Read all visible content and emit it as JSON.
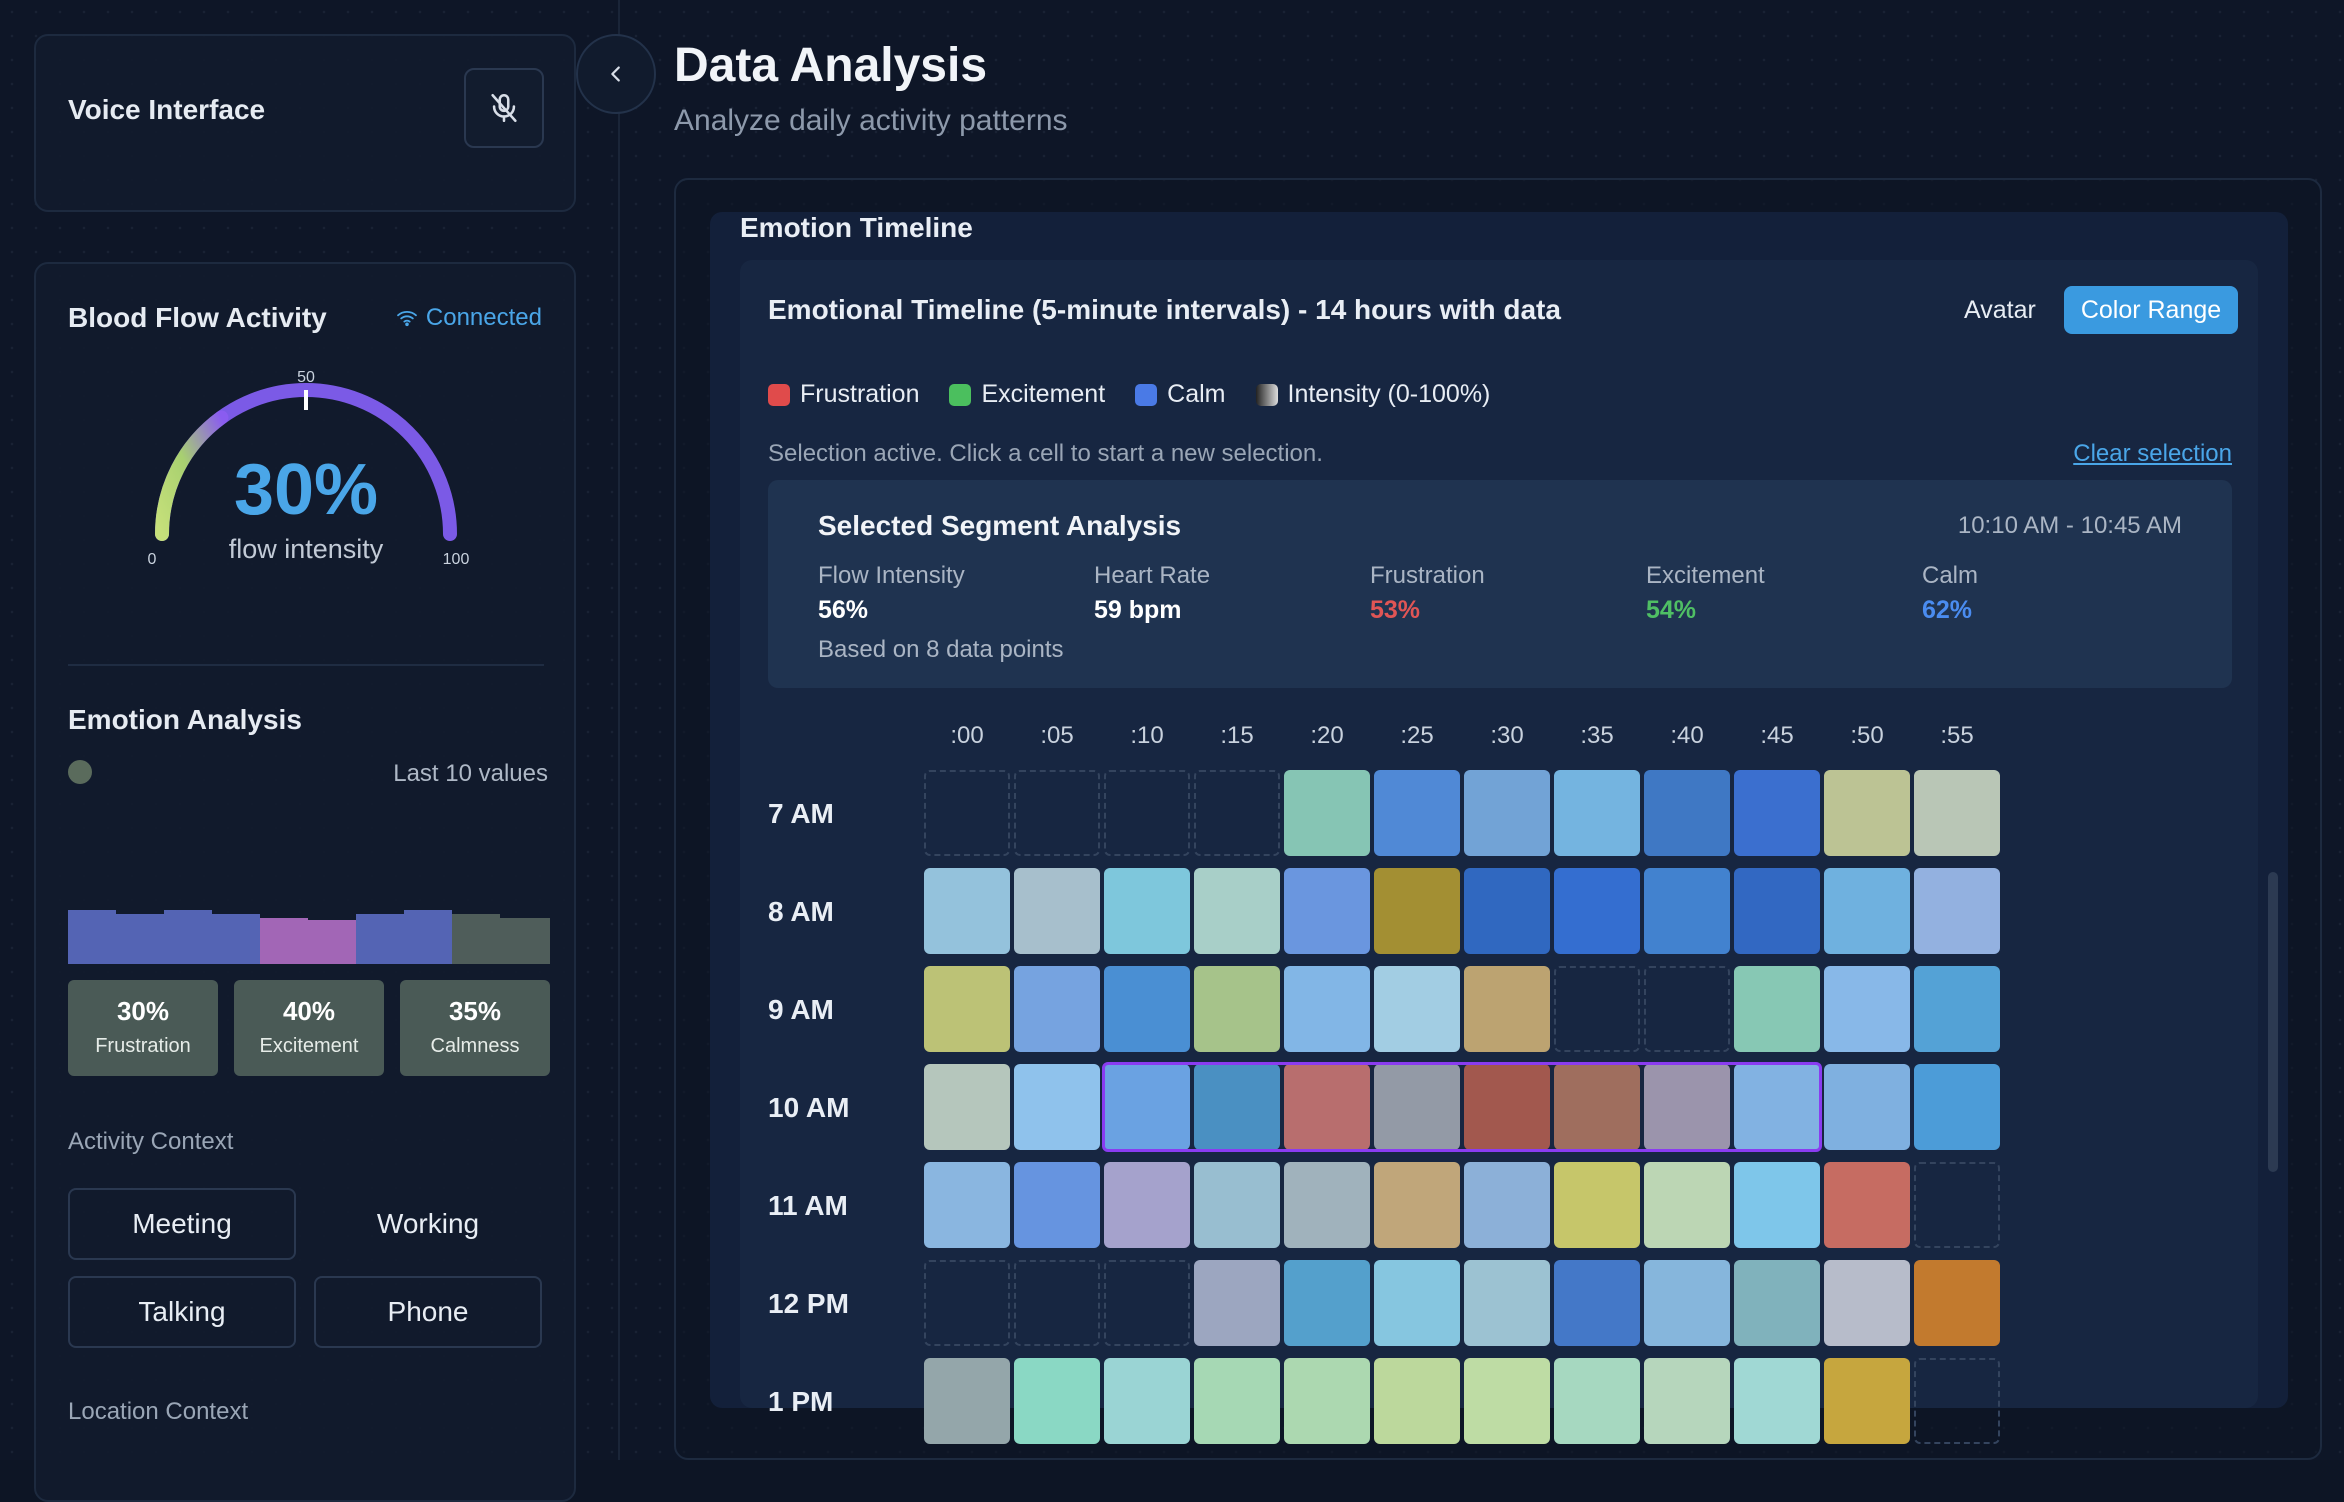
{
  "sidebar": {
    "voice": {
      "title": "Voice Interface",
      "mic_icon": "mic-off-icon"
    },
    "blood_flow": {
      "title": "Blood Flow Activity",
      "status": "Connected",
      "gauge": {
        "value": 30,
        "value_label": "30%",
        "caption": "flow intensity",
        "min_label": "0",
        "mid_label": "50",
        "max_label": "100"
      }
    },
    "emotion": {
      "title": "Emotion Analysis",
      "last_values_label": "Last 10 values",
      "stats": [
        {
          "value": "30%",
          "label": "Frustration"
        },
        {
          "value": "40%",
          "label": "Excitement"
        },
        {
          "value": "35%",
          "label": "Calmness"
        }
      ]
    },
    "activity_context": {
      "label": "Activity Context",
      "options": [
        "Meeting",
        "Working",
        "Talking",
        "Phone"
      ]
    },
    "location_context": {
      "label": "Location Context"
    }
  },
  "header": {
    "title": "Data Analysis",
    "subtitle": "Analyze daily activity patterns"
  },
  "timeline": {
    "section_title": "Emotion Timeline",
    "heading": "Emotional Timeline (5-minute intervals) - 14 hours with data",
    "avatar_label": "Avatar",
    "color_range_label": "Color Range",
    "legend": [
      {
        "label": "Frustration",
        "color": "#e04b4b"
      },
      {
        "label": "Excitement",
        "color": "#4bbf5e"
      },
      {
        "label": "Calm",
        "color": "#4a7ae6"
      },
      {
        "label": "Intensity (0-100%)",
        "color": "#888888"
      }
    ],
    "selection_note": "Selection active. Click a cell to start a new selection.",
    "clear_selection": "Clear selection",
    "segment": {
      "title": "Selected Segment Analysis",
      "time_range": "10:10 AM - 10:45 AM",
      "metrics": [
        {
          "label": "Flow Intensity",
          "value": "56%",
          "color": "#ffffff"
        },
        {
          "label": "Heart Rate",
          "value": "59 bpm",
          "color": "#ffffff"
        },
        {
          "label": "Frustration",
          "value": "53%",
          "color": "#e05555"
        },
        {
          "label": "Excitement",
          "value": "54%",
          "color": "#4fbf64"
        },
        {
          "label": "Calm",
          "value": "62%",
          "color": "#4a8cf0"
        }
      ],
      "footnote": "Based on 8 data points"
    },
    "columns": [
      ":00",
      ":05",
      ":10",
      ":15",
      ":20",
      ":25",
      ":30",
      ":35",
      ":40",
      ":45",
      ":50",
      ":55"
    ],
    "rows": [
      {
        "label": "7 AM",
        "cells": [
          "",
          "",
          "",
          "",
          "#86c5b4",
          "#5089d6",
          "#72a3d6",
          "#74b4e0",
          "#3f78c4",
          "#3b6fcf",
          "#bcc394",
          "#b9c6b6"
        ]
      },
      {
        "label": "8 AM",
        "cells": [
          "#94c2dc",
          "#a7bfcc",
          "#7ec7dc",
          "#a8cfc8",
          "#6a96df",
          "#a38f33",
          "#3068c0",
          "#346ed0",
          "#4282cf",
          "#3268c2",
          "#6fb1df",
          "#93b1e0"
        ]
      },
      {
        "label": "9 AM",
        "cells": [
          "#bcc276",
          "#76a3e0",
          "#4a8fd3",
          "#a6c38a",
          "#82b6e6",
          "#a2cde3",
          "#bca371",
          "",
          "",
          "#87c8b4",
          "#88b8e8",
          "#54a2d6"
        ]
      },
      {
        "label": "10 AM",
        "cells": [
          "#b5c6bc",
          "#8fc2ec",
          "#6aa2e2",
          "#4a90c2",
          "#b86e6e",
          "#939aa6",
          "#a2584e",
          "#9f6e5e",
          "#9b94ac",
          "#82b2e2",
          "#7fb0e0",
          "#4c9cd8"
        ]
      },
      {
        "label": "11 AM",
        "cells": [
          "#8ab6e0",
          "#6694e0",
          "#a5a2cc",
          "#98bed0",
          "#a0b2bc",
          "#c0a67a",
          "#8cb0d8",
          "#c6c66a",
          "#bcd6b4",
          "#7ec6ea",
          "#c66c62",
          ""
        ]
      },
      {
        "label": "12 PM",
        "cells": [
          "",
          "",
          "",
          "#9ca6c0",
          "#54a0cc",
          "#86c6e0",
          "#9cc2d2",
          "#4478c8",
          "#86b6dc",
          "#80b2bc",
          "#b7bcca",
          "#c27a2e"
        ]
      },
      {
        "label": "1 PM",
        "cells": [
          "#94a6aa",
          "#8ad8c4",
          "#9ad4d4",
          "#a6d8b4",
          "#acd8b0",
          "#bcd89c",
          "#bedca4",
          "#a6d8c0",
          "#b6d6bc",
          "#a0d8d4",
          "#c6a63e",
          ""
        ]
      }
    ],
    "selection": {
      "row": 3,
      "from_col": 2,
      "to_col": 9
    }
  }
}
